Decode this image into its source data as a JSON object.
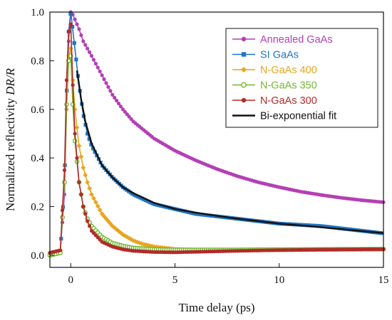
{
  "chart_data": {
    "type": "line",
    "title": "",
    "xlabel": "Time delay (ps)",
    "ylabel_main": "Normalized reflectivity ",
    "ylabel_italic": "DR/R",
    "xlim": [
      -1.0,
      15.0
    ],
    "ylim": [
      -0.05,
      1.0
    ],
    "x_ticks": [
      0,
      5,
      10,
      15
    ],
    "x_tick_labels": [
      "0",
      "5",
      "10",
      "15"
    ],
    "y_ticks": [
      0.0,
      0.2,
      0.4,
      0.6,
      0.8,
      1.0
    ],
    "y_tick_labels": [
      "0.0",
      "0.2",
      "0.4",
      "0.6",
      "0.8",
      "1.0"
    ],
    "grid": false,
    "legend_position": "top-right",
    "series": [
      {
        "name": "Annealed GaAs",
        "color": "#b43fb4",
        "marker": "circle",
        "x": [
          -1.0,
          -0.5,
          -0.3,
          -0.2,
          -0.1,
          0.0,
          0.1,
          0.2,
          0.4,
          0.6,
          1.0,
          1.5,
          2.0,
          2.5,
          3.0,
          4.0,
          5.0,
          6.0,
          7.0,
          8.0,
          9.0,
          10.0,
          11.0,
          12.0,
          13.0,
          14.0,
          15.0
        ],
        "y": [
          0.01,
          0.02,
          0.25,
          0.6,
          0.88,
          1.0,
          0.99,
          0.97,
          0.93,
          0.88,
          0.82,
          0.74,
          0.66,
          0.6,
          0.55,
          0.48,
          0.43,
          0.39,
          0.355,
          0.325,
          0.3,
          0.28,
          0.262,
          0.248,
          0.236,
          0.226,
          0.218
        ]
      },
      {
        "name": "SI GaAs",
        "color": "#1f74c2",
        "marker": "square",
        "x": [
          -1.0,
          -0.5,
          -0.3,
          -0.2,
          -0.1,
          0.0,
          0.2,
          0.4,
          0.6,
          0.8,
          1.0,
          1.5,
          2.0,
          2.5,
          3.0,
          4.0,
          5.0,
          6.0,
          7.0,
          8.0,
          9.0,
          10.0,
          11.0,
          12.0,
          13.0,
          14.0,
          15.0
        ],
        "y": [
          0.0,
          0.01,
          0.3,
          0.65,
          0.92,
          1.0,
          0.85,
          0.7,
          0.58,
          0.5,
          0.45,
          0.37,
          0.32,
          0.28,
          0.25,
          0.21,
          0.19,
          0.17,
          0.16,
          0.15,
          0.14,
          0.13,
          0.125,
          0.12,
          0.11,
          0.1,
          0.09
        ]
      },
      {
        "name": "N-GaAs 400",
        "color": "#e9a520",
        "marker": "diamond",
        "x": [
          -1.0,
          -0.5,
          -0.3,
          -0.2,
          -0.1,
          0.0,
          0.1,
          0.2,
          0.4,
          0.6,
          0.8,
          1.0,
          1.5,
          2.0,
          2.5,
          3.0,
          3.5,
          4.0,
          5.0,
          6.0,
          8.0,
          10.0,
          12.0,
          15.0
        ],
        "y": [
          0.01,
          0.02,
          0.3,
          0.6,
          0.82,
          0.85,
          0.72,
          0.6,
          0.45,
          0.36,
          0.3,
          0.25,
          0.17,
          0.12,
          0.085,
          0.06,
          0.045,
          0.035,
          0.025,
          0.022,
          0.022,
          0.023,
          0.024,
          0.025
        ]
      },
      {
        "name": "N-GaAs 350",
        "color": "#72b82e",
        "marker": "circle-open",
        "x": [
          -1.0,
          -0.5,
          -0.3,
          -0.2,
          -0.1,
          0.0,
          0.1,
          0.2,
          0.4,
          0.6,
          0.8,
          1.0,
          1.5,
          2.0,
          2.5,
          3.0,
          4.0,
          5.0,
          6.0,
          8.0,
          10.0,
          12.0,
          15.0
        ],
        "y": [
          0.0,
          0.01,
          0.3,
          0.62,
          0.8,
          0.82,
          0.62,
          0.47,
          0.3,
          0.2,
          0.15,
          0.12,
          0.075,
          0.05,
          0.038,
          0.03,
          0.024,
          0.022,
          0.022,
          0.022,
          0.023,
          0.024,
          0.025
        ]
      },
      {
        "name": "N-GaAs 300",
        "color": "#b22a2a",
        "marker": "circle",
        "x": [
          -1.0,
          -0.5,
          -0.3,
          -0.2,
          -0.1,
          0.0,
          0.1,
          0.2,
          0.4,
          0.6,
          0.8,
          1.0,
          1.5,
          2.0,
          2.5,
          3.0,
          4.0,
          5.0,
          6.0,
          8.0,
          10.0,
          12.0,
          15.0
        ],
        "y": [
          0.01,
          0.02,
          0.35,
          0.72,
          0.92,
          0.95,
          0.7,
          0.5,
          0.3,
          0.2,
          0.14,
          0.1,
          0.055,
          0.035,
          0.024,
          0.018,
          0.013,
          0.012,
          0.014,
          0.018,
          0.021,
          0.023,
          0.025
        ]
      },
      {
        "name": "Bi-exponential fit",
        "color": "#111111",
        "marker": "none",
        "x": [
          0.3,
          0.5,
          0.7,
          1.0,
          1.5,
          2.0,
          2.5,
          3.0,
          4.0,
          5.0,
          6.0,
          7.0,
          8.0,
          9.0,
          10.0,
          11.0,
          12.0,
          13.0,
          14.0,
          15.0
        ],
        "y": [
          0.76,
          0.64,
          0.55,
          0.46,
          0.37,
          0.32,
          0.28,
          0.255,
          0.215,
          0.19,
          0.175,
          0.162,
          0.15,
          0.14,
          0.13,
          0.123,
          0.115,
          0.107,
          0.099,
          0.091
        ]
      }
    ]
  }
}
